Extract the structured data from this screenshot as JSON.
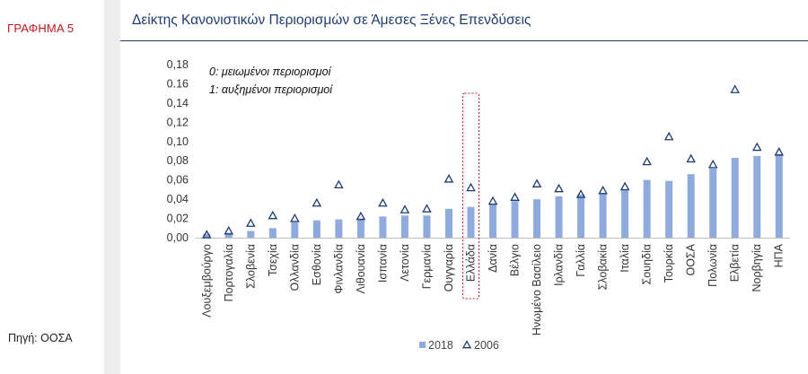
{
  "figure_label": "ΓΡΑΦΗΜΑ 5",
  "source": "Πηγή: ΟΟΣΑ",
  "colors": {
    "bar": "#8faadc",
    "marker": "#1f3b73",
    "highlight": "#c0171c",
    "title": "#1f3b73",
    "figure_label": "#c0171c"
  },
  "chart_data": {
    "type": "bar",
    "title": "Δείκτης Κανονιστικών Περιορισμών σε Άμεσες Ξένες Επενδύσεις",
    "annotations": [
      "0: μειωμένοι περιορισμοί",
      "1: αυξημένοι περιορισμοί"
    ],
    "y_ticks": [
      "0,00",
      "0,02",
      "0,04",
      "0,06",
      "0,08",
      "0,10",
      "0,12",
      "0,14",
      "0.16",
      "0,18"
    ],
    "ylim": [
      0,
      0.18
    ],
    "highlight_category": "Ελλάδα",
    "categories": [
      "Λουξεμβούργο",
      "Πορτογαλία",
      "Σλοβενία",
      "Τσεχία",
      "Ολλανδία",
      "Εσθονία",
      "Φινλανδία",
      "Λιθουανία",
      "Ισπανία",
      "Λετονία",
      "Γερμανία",
      "Ουγγαρία",
      "Ελλάδα",
      "Δανία",
      "Βέλγιο",
      "Ηνωμένο Βασίλειο",
      "Ιρλανδία",
      "Γαλλία",
      "Σλοβακία",
      "Ιταλία",
      "Σουηδία",
      "Τουρκία",
      "ΟΟΣΑ",
      "Πολωνία",
      "Ελβετία",
      "Νορβηγία",
      "ΗΠΑ"
    ],
    "series": [
      {
        "name": "2018",
        "kind": "bar",
        "values": [
          0.004,
          0.005,
          0.007,
          0.01,
          0.016,
          0.018,
          0.019,
          0.02,
          0.022,
          0.023,
          0.023,
          0.03,
          0.032,
          0.035,
          0.038,
          0.04,
          0.043,
          0.045,
          0.046,
          0.05,
          0.06,
          0.059,
          0.066,
          0.072,
          0.083,
          0.085,
          0.087
        ]
      },
      {
        "name": "2006",
        "kind": "marker",
        "values": [
          0.003,
          0.007,
          0.015,
          0.023,
          0.02,
          0.036,
          0.055,
          0.022,
          0.036,
          0.029,
          0.03,
          0.061,
          0.052,
          0.038,
          0.042,
          0.056,
          0.051,
          0.045,
          0.049,
          0.053,
          0.079,
          0.105,
          0.082,
          0.076,
          0.154,
          0.094,
          0.089
        ]
      }
    ],
    "legend": [
      "2018",
      "2006"
    ]
  }
}
